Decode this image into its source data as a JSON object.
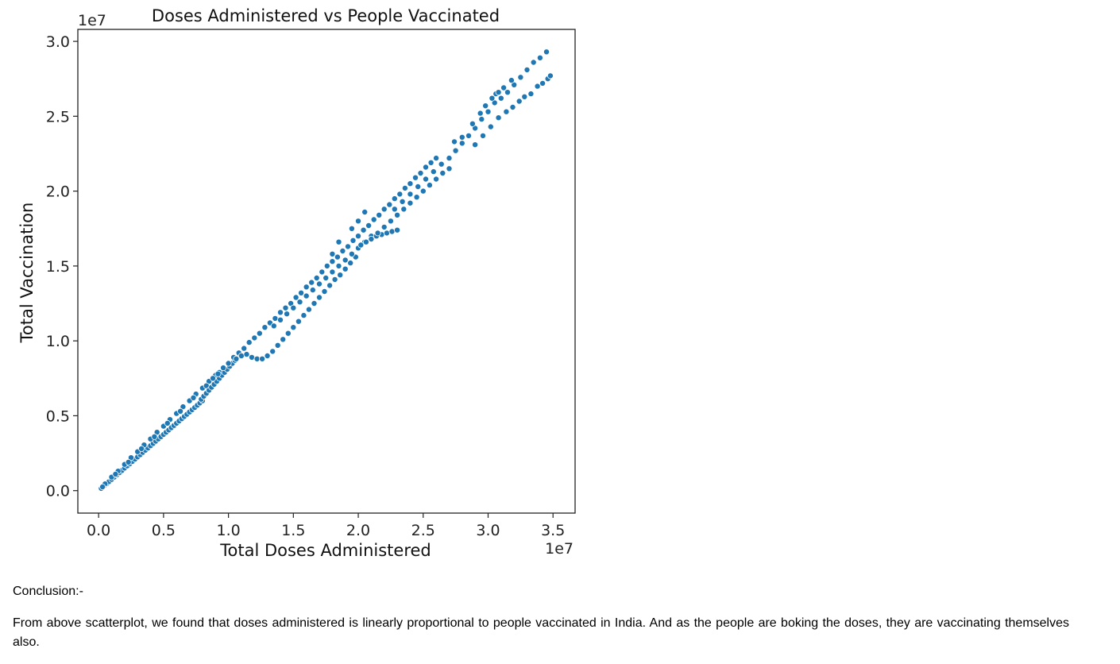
{
  "chart_data": {
    "type": "scatter",
    "title": "Doses Administered vs People Vaccinated",
    "xlabel": "Total Doses Administered",
    "ylabel": "Total Vaccination",
    "x_offset_label": "1e7",
    "y_offset_label": "1e7",
    "xlim": [
      -0.16,
      3.67
    ],
    "ylim": [
      -0.15,
      3.08
    ],
    "x_ticks": [
      0.0,
      0.5,
      1.0,
      1.5,
      2.0,
      2.5,
      3.0,
      3.5
    ],
    "x_tick_labels": [
      "0.0",
      "0.5",
      "1.0",
      "1.5",
      "2.0",
      "2.5",
      "3.0",
      "3.5"
    ],
    "y_ticks": [
      0.0,
      0.5,
      1.0,
      1.5,
      2.0,
      2.5,
      3.0
    ],
    "y_tick_labels": [
      "0.0",
      "0.5",
      "1.0",
      "1.5",
      "2.0",
      "2.5",
      "3.0"
    ],
    "grid": false,
    "marker_color": "#1f77b4",
    "marker_edge_color": "#ffffff",
    "series": [
      {
        "points": [
          [
            0.02,
            0.015
          ],
          [
            0.04,
            0.03
          ],
          [
            0.06,
            0.045
          ],
          [
            0.08,
            0.06
          ],
          [
            0.1,
            0.075
          ],
          [
            0.12,
            0.09
          ],
          [
            0.14,
            0.105
          ],
          [
            0.16,
            0.12
          ],
          [
            0.18,
            0.135
          ],
          [
            0.2,
            0.15
          ],
          [
            0.22,
            0.165
          ],
          [
            0.24,
            0.18
          ],
          [
            0.26,
            0.195
          ],
          [
            0.28,
            0.21
          ],
          [
            0.3,
            0.225
          ],
          [
            0.32,
            0.24
          ],
          [
            0.34,
            0.255
          ],
          [
            0.36,
            0.27
          ],
          [
            0.38,
            0.285
          ],
          [
            0.4,
            0.3
          ],
          [
            0.42,
            0.315
          ],
          [
            0.44,
            0.33
          ],
          [
            0.46,
            0.345
          ],
          [
            0.48,
            0.36
          ],
          [
            0.5,
            0.375
          ],
          [
            0.52,
            0.39
          ],
          [
            0.54,
            0.405
          ],
          [
            0.56,
            0.42
          ],
          [
            0.58,
            0.435
          ],
          [
            0.6,
            0.45
          ],
          [
            0.62,
            0.465
          ],
          [
            0.64,
            0.48
          ],
          [
            0.66,
            0.495
          ],
          [
            0.68,
            0.51
          ],
          [
            0.7,
            0.525
          ],
          [
            0.72,
            0.54
          ],
          [
            0.74,
            0.555
          ],
          [
            0.76,
            0.57
          ],
          [
            0.78,
            0.585
          ],
          [
            0.8,
            0.6
          ],
          [
            0.05,
            0.045
          ],
          [
            0.1,
            0.09
          ],
          [
            0.15,
            0.13
          ],
          [
            0.2,
            0.175
          ],
          [
            0.25,
            0.22
          ],
          [
            0.3,
            0.26
          ],
          [
            0.35,
            0.305
          ],
          [
            0.4,
            0.345
          ],
          [
            0.45,
            0.39
          ],
          [
            0.5,
            0.43
          ],
          [
            0.55,
            0.475
          ],
          [
            0.6,
            0.515
          ],
          [
            0.65,
            0.56
          ],
          [
            0.7,
            0.6
          ],
          [
            0.75,
            0.645
          ],
          [
            0.8,
            0.685
          ],
          [
            0.85,
            0.73
          ],
          [
            0.9,
            0.77
          ],
          [
            0.03,
            0.025
          ],
          [
            0.13,
            0.11
          ],
          [
            0.23,
            0.19
          ],
          [
            0.33,
            0.28
          ],
          [
            0.43,
            0.36
          ],
          [
            0.53,
            0.45
          ],
          [
            0.63,
            0.53
          ],
          [
            0.73,
            0.62
          ],
          [
            0.83,
            0.7
          ],
          [
            0.93,
            0.79
          ],
          [
            0.79,
            0.61
          ],
          [
            0.81,
            0.63
          ],
          [
            0.83,
            0.65
          ],
          [
            0.85,
            0.67
          ],
          [
            0.87,
            0.69
          ],
          [
            0.89,
            0.71
          ],
          [
            0.91,
            0.73
          ],
          [
            0.93,
            0.75
          ],
          [
            0.95,
            0.77
          ],
          [
            0.97,
            0.79
          ],
          [
            0.99,
            0.81
          ],
          [
            1.01,
            0.83
          ],
          [
            1.03,
            0.85
          ],
          [
            1.05,
            0.87
          ],
          [
            0.88,
            0.75
          ],
          [
            0.92,
            0.78
          ],
          [
            0.96,
            0.82
          ],
          [
            1.0,
            0.85
          ],
          [
            1.04,
            0.89
          ],
          [
            1.08,
            0.92
          ],
          [
            1.12,
            0.95
          ],
          [
            1.16,
            0.99
          ],
          [
            1.2,
            1.02
          ],
          [
            1.24,
            1.05
          ],
          [
            1.28,
            1.09
          ],
          [
            1.32,
            1.12
          ],
          [
            1.36,
            1.15
          ],
          [
            1.4,
            1.19
          ],
          [
            1.44,
            1.22
          ],
          [
            1.48,
            1.25
          ],
          [
            1.52,
            1.29
          ],
          [
            1.56,
            1.32
          ],
          [
            1.6,
            1.36
          ],
          [
            1.64,
            1.39
          ],
          [
            1.68,
            1.42
          ],
          [
            1.72,
            1.46
          ],
          [
            1.06,
            0.88
          ],
          [
            1.1,
            0.9
          ],
          [
            1.14,
            0.91
          ],
          [
            1.18,
            0.89
          ],
          [
            1.22,
            0.88
          ],
          [
            1.26,
            0.88
          ],
          [
            1.3,
            0.9
          ],
          [
            1.34,
            0.93
          ],
          [
            1.38,
            0.97
          ],
          [
            1.42,
            1.01
          ],
          [
            1.46,
            1.05
          ],
          [
            1.5,
            1.09
          ],
          [
            1.54,
            1.13
          ],
          [
            1.58,
            1.17
          ],
          [
            1.62,
            1.21
          ],
          [
            1.66,
            1.25
          ],
          [
            1.7,
            1.29
          ],
          [
            1.74,
            1.33
          ],
          [
            1.78,
            1.37
          ],
          [
            1.82,
            1.41
          ],
          [
            1.86,
            1.44
          ],
          [
            1.9,
            1.48
          ],
          [
            1.94,
            1.52
          ],
          [
            1.98,
            1.56
          ],
          [
            1.35,
            1.1
          ],
          [
            1.4,
            1.14
          ],
          [
            1.45,
            1.18
          ],
          [
            1.5,
            1.22
          ],
          [
            1.55,
            1.26
          ],
          [
            1.6,
            1.3
          ],
          [
            1.65,
            1.34
          ],
          [
            1.7,
            1.38
          ],
          [
            1.75,
            1.42
          ],
          [
            1.8,
            1.46
          ],
          [
            1.85,
            1.5
          ],
          [
            1.9,
            1.54
          ],
          [
            1.95,
            1.58
          ],
          [
            2.0,
            1.62
          ],
          [
            2.05,
            1.66
          ],
          [
            2.1,
            1.7
          ],
          [
            1.76,
            1.5
          ],
          [
            1.8,
            1.53
          ],
          [
            1.84,
            1.56
          ],
          [
            1.88,
            1.6
          ],
          [
            1.92,
            1.63
          ],
          [
            1.96,
            1.67
          ],
          [
            2.0,
            1.7
          ],
          [
            2.04,
            1.74
          ],
          [
            2.08,
            1.77
          ],
          [
            2.12,
            1.81
          ],
          [
            2.16,
            1.84
          ],
          [
            2.2,
            1.88
          ],
          [
            2.24,
            1.91
          ],
          [
            2.28,
            1.95
          ],
          [
            2.32,
            1.98
          ],
          [
            2.36,
            2.02
          ],
          [
            2.4,
            2.05
          ],
          [
            2.44,
            2.09
          ],
          [
            2.48,
            2.12
          ],
          [
            2.52,
            2.16
          ],
          [
            2.56,
            2.19
          ],
          [
            2.6,
            2.22
          ],
          [
            2.02,
            1.64
          ],
          [
            2.06,
            1.66
          ],
          [
            2.1,
            1.68
          ],
          [
            2.14,
            1.7
          ],
          [
            2.18,
            1.71
          ],
          [
            2.22,
            1.72
          ],
          [
            2.26,
            1.73
          ],
          [
            2.3,
            1.74
          ],
          [
            2.15,
            1.72
          ],
          [
            2.2,
            1.76
          ],
          [
            2.25,
            1.8
          ],
          [
            2.3,
            1.84
          ],
          [
            2.35,
            1.88
          ],
          [
            2.4,
            1.92
          ],
          [
            2.45,
            1.96
          ],
          [
            2.5,
            2.0
          ],
          [
            2.55,
            2.04
          ],
          [
            2.6,
            2.08
          ],
          [
            2.65,
            2.12
          ],
          [
            2.7,
            2.15
          ],
          [
            2.28,
            1.88
          ],
          [
            2.34,
            1.93
          ],
          [
            2.4,
            1.98
          ],
          [
            2.46,
            2.03
          ],
          [
            2.52,
            2.08
          ],
          [
            2.58,
            2.13
          ],
          [
            2.64,
            2.18
          ],
          [
            1.95,
            1.75
          ],
          [
            2.0,
            1.8
          ],
          [
            2.05,
            1.86
          ],
          [
            1.85,
            1.66
          ],
          [
            1.8,
            1.58
          ],
          [
            2.7,
            2.22
          ],
          [
            2.75,
            2.27
          ],
          [
            2.8,
            2.32
          ],
          [
            2.85,
            2.37
          ],
          [
            2.9,
            2.42
          ],
          [
            2.95,
            2.48
          ],
          [
            3.0,
            2.53
          ],
          [
            3.05,
            2.59
          ],
          [
            3.1,
            2.62
          ],
          [
            3.15,
            2.66
          ],
          [
            3.2,
            2.71
          ],
          [
            3.25,
            2.76
          ],
          [
            3.3,
            2.81
          ],
          [
            3.35,
            2.86
          ],
          [
            3.4,
            2.89
          ],
          [
            3.45,
            2.93
          ],
          [
            2.74,
            2.33
          ],
          [
            2.8,
            2.36
          ],
          [
            2.88,
            2.45
          ],
          [
            2.94,
            2.52
          ],
          [
            2.98,
            2.57
          ],
          [
            3.03,
            2.62
          ],
          [
            3.06,
            2.65
          ],
          [
            3.08,
            2.66
          ],
          [
            3.12,
            2.69
          ],
          [
            3.18,
            2.74
          ],
          [
            2.9,
            2.31
          ],
          [
            2.96,
            2.37
          ],
          [
            3.02,
            2.43
          ],
          [
            3.08,
            2.49
          ],
          [
            3.14,
            2.53
          ],
          [
            3.19,
            2.56
          ],
          [
            3.24,
            2.6
          ],
          [
            3.28,
            2.63
          ],
          [
            3.33,
            2.65
          ],
          [
            3.38,
            2.7
          ],
          [
            3.42,
            2.72
          ],
          [
            3.46,
            2.75
          ],
          [
            3.48,
            2.77
          ]
        ]
      }
    ]
  },
  "text": {
    "conclusion_heading": "Conclusion:-",
    "conclusion_body": "From above scatterplot, we found that doses administered is linearly proportional to people vaccinated in India. And as the people are boking the doses, they are vaccinating themselves also."
  }
}
